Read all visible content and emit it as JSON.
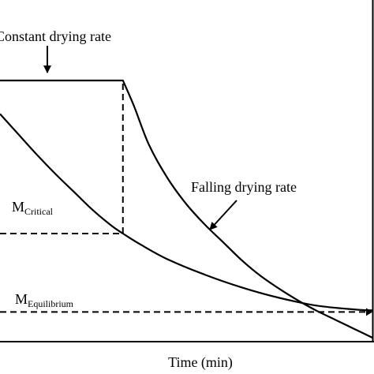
{
  "chart_data": {
    "type": "line",
    "xlabel": "Time (min)",
    "ylabel": "",
    "xlim": [
      0,
      100
    ],
    "ylim": [
      0,
      100
    ],
    "grid": false,
    "series": [
      {
        "name": "Constant drying rate",
        "role": "rate",
        "points": [
          [
            0,
            100
          ],
          [
            33,
            100
          ],
          [
            36,
            90
          ],
          [
            40,
            75
          ],
          [
            45,
            62
          ],
          [
            50,
            52
          ],
          [
            55,
            44
          ],
          [
            60,
            37
          ],
          [
            65,
            30
          ],
          [
            70,
            24
          ],
          [
            75,
            19
          ],
          [
            80,
            14.5
          ],
          [
            85,
            10.5
          ],
          [
            90,
            7
          ],
          [
            95,
            3.5
          ],
          [
            100,
            0
          ]
        ]
      },
      {
        "name": "",
        "role": "moisture",
        "points": [
          [
            0,
            87
          ],
          [
            5,
            79
          ],
          [
            10,
            71
          ],
          [
            15,
            63.5
          ],
          [
            20,
            56.5
          ],
          [
            25,
            49.5
          ],
          [
            30,
            43.5
          ],
          [
            33,
            40.5
          ],
          [
            38,
            36
          ],
          [
            45,
            30.5
          ],
          [
            55,
            24.5
          ],
          [
            65,
            19.5
          ],
          [
            75,
            15.5
          ],
          [
            85,
            12.5
          ],
          [
            95,
            11
          ],
          [
            100,
            10.6
          ]
        ]
      }
    ],
    "reference_lines": {
      "critical_level": 40.5,
      "critical_time": 33,
      "equilibrium_level": 10
    },
    "labels": {
      "constant": "Constant drying rate",
      "falling": "Falling drying rate",
      "critical_base": "M",
      "critical_sub": "Critical",
      "equilibrium_base": "M",
      "equilibrium_sub": "Equilibrium"
    },
    "colors": {
      "line": "#000000",
      "background": "#ffffff"
    }
  }
}
